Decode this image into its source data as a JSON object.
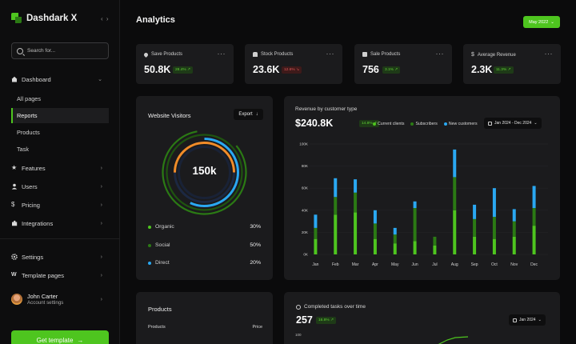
{
  "brand": {
    "name": "Dashdark X",
    "collapse_icon": "chevrons-left-right-icon"
  },
  "search": {
    "placeholder": "Search for..."
  },
  "nav": {
    "dashboard": "Dashboard",
    "sub": [
      "All pages",
      "Reports",
      "Products",
      "Task"
    ],
    "features": "Features",
    "users": "Users",
    "pricing": "Pricing",
    "integrations": "Integrations",
    "settings": "Settings",
    "template_pages": "Template pages"
  },
  "user": {
    "name": "John Carter",
    "subtitle": "Account settings"
  },
  "cta": {
    "label": "Get template"
  },
  "header": {
    "title": "Analytics",
    "date_label": "May 2022"
  },
  "stats": [
    {
      "label": "Save Products",
      "value": "50.8K",
      "badge": "28.4%",
      "trend": "up"
    },
    {
      "label": "Stock Products",
      "value": "23.6K",
      "badge": "12.6%",
      "trend": "down"
    },
    {
      "label": "Sale Products",
      "value": "756",
      "badge": "3.1%",
      "trend": "up"
    },
    {
      "label": "Average Revenue",
      "value": "2.3K",
      "badge": "11.3%",
      "trend": "up"
    }
  ],
  "visitors": {
    "title": "Website Visitors",
    "export_label": "Export",
    "total": "150k",
    "legend": [
      {
        "name": "Organic",
        "pct": "30%",
        "color": "#4ec51f"
      },
      {
        "name": "Social",
        "pct": "50%",
        "color": "#2b7a14"
      },
      {
        "name": "Direct",
        "pct": "20%",
        "color": "#2aa8f2"
      }
    ]
  },
  "revenue": {
    "title": "Revenue by customer type",
    "total": "$240.8K",
    "badge": "14.8%",
    "range_label": "Jan 2024 - Dec 2024",
    "legend": [
      "Current clients",
      "Subscribers",
      "New customers"
    ]
  },
  "products": {
    "title": "Products",
    "col_product": "Products",
    "col_price": "Price"
  },
  "tasks": {
    "title": "Completed tasks over time",
    "value": "257",
    "badge": "16.8%",
    "range_label": "Jan 2024",
    "y_tick": "100"
  },
  "colors": {
    "accent": "#4ec51f",
    "dark_green": "#2b7a14",
    "blue": "#2aa8f2",
    "orange": "#f28c28"
  },
  "chart_data": {
    "type": "bar",
    "title": "Revenue by customer type",
    "categories": [
      "Jan",
      "Feb",
      "Mar",
      "Apr",
      "May",
      "Jun",
      "Jul",
      "Aug",
      "Sep",
      "Oct",
      "Nov",
      "Dec"
    ],
    "y_ticks": [
      "0K",
      "20K",
      "40K",
      "60K",
      "80K",
      "100K"
    ],
    "ylim": [
      0,
      100
    ],
    "stacked": true,
    "series": [
      {
        "name": "Current clients",
        "color": "#4ec51f",
        "values": [
          14,
          36,
          38,
          14,
          10,
          12,
          8,
          40,
          16,
          14,
          16,
          26
        ]
      },
      {
        "name": "Subscribers",
        "color": "#2b7a14",
        "values": [
          10,
          16,
          18,
          14,
          8,
          30,
          8,
          30,
          16,
          20,
          14,
          16
        ]
      },
      {
        "name": "New customers",
        "color": "#2aa8f2",
        "values": [
          12,
          17,
          12,
          12,
          6,
          6,
          0,
          25,
          13,
          26,
          11,
          20
        ]
      }
    ]
  }
}
